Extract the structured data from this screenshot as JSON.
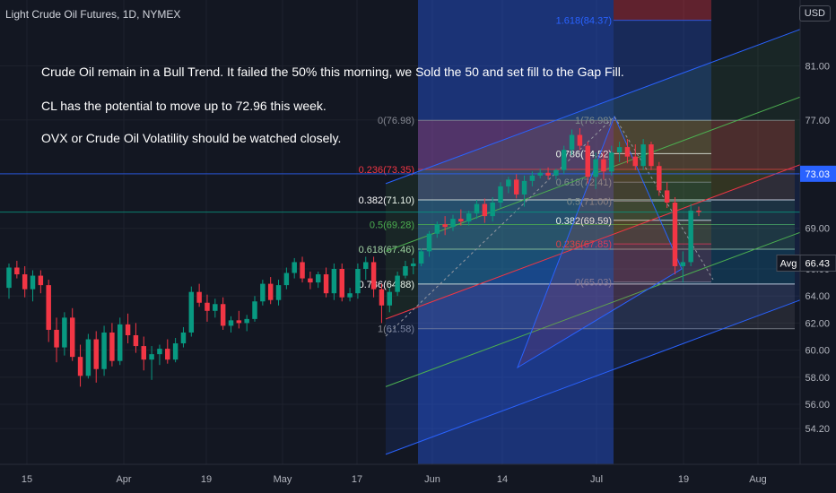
{
  "header": {
    "title": "Light Crude Oil Futures, 1D, NYMEX",
    "currency": "USD"
  },
  "notes": [
    "Crude Oil remain in a Bull Trend. It failed the 50% this morning, we Sold the 50 and set fill to the Gap Fill.",
    "CL has the potential to move up to 72.96 this week.",
    "OVX or Crude Oil Volatility should be watched closely."
  ],
  "chart_data": {
    "type": "candlestick",
    "ylim": [
      54.2,
      84.5
    ],
    "y_ticks": [
      "54.20",
      "56.00",
      "58.00",
      "60.00",
      "62.00",
      "64.00",
      "66.00",
      "69.00",
      "73.00",
      "77.00",
      "81.00"
    ],
    "x_ticks": [
      "15",
      "Apr",
      "19",
      "May",
      "17",
      "Jun",
      "14",
      "Jul",
      "19",
      "Aug"
    ],
    "price_labels": [
      {
        "text": "73.03",
        "value": 73.03,
        "prefix": ""
      },
      {
        "text": "66.43",
        "value": 66.43,
        "prefix": "Avg"
      }
    ],
    "horizontal_lines": [
      73.03,
      70.2
    ],
    "candles": [
      {
        "o": 64.6,
        "h": 66.4,
        "l": 63.8,
        "c": 66.1
      },
      {
        "o": 66.1,
        "h": 66.6,
        "l": 65.3,
        "c": 65.6
      },
      {
        "o": 65.6,
        "h": 66.2,
        "l": 63.9,
        "c": 64.5
      },
      {
        "o": 64.5,
        "h": 65.9,
        "l": 63.6,
        "c": 65.5
      },
      {
        "o": 65.5,
        "h": 65.9,
        "l": 64.2,
        "c": 64.8
      },
      {
        "o": 64.8,
        "h": 65.2,
        "l": 60.6,
        "c": 61.5
      },
      {
        "o": 61.5,
        "h": 62.4,
        "l": 59.1,
        "c": 60.2
      },
      {
        "o": 60.2,
        "h": 62.8,
        "l": 59.6,
        "c": 62.4
      },
      {
        "o": 62.4,
        "h": 63.1,
        "l": 59.2,
        "c": 59.5
      },
      {
        "o": 59.5,
        "h": 60.4,
        "l": 57.3,
        "c": 58.1
      },
      {
        "o": 58.1,
        "h": 61.2,
        "l": 57.9,
        "c": 60.8
      },
      {
        "o": 60.8,
        "h": 61.4,
        "l": 57.6,
        "c": 58.6
      },
      {
        "o": 58.6,
        "h": 61.8,
        "l": 58.1,
        "c": 61.3
      },
      {
        "o": 61.3,
        "h": 62.0,
        "l": 58.8,
        "c": 59.2
      },
      {
        "o": 59.2,
        "h": 62.4,
        "l": 58.9,
        "c": 61.9
      },
      {
        "o": 61.9,
        "h": 62.7,
        "l": 60.5,
        "c": 61.1
      },
      {
        "o": 61.1,
        "h": 62.0,
        "l": 59.8,
        "c": 60.3
      },
      {
        "o": 60.3,
        "h": 61.0,
        "l": 58.5,
        "c": 59.3
      },
      {
        "o": 59.3,
        "h": 60.3,
        "l": 57.8,
        "c": 59.7
      },
      {
        "o": 59.7,
        "h": 60.4,
        "l": 58.9,
        "c": 60.1
      },
      {
        "o": 60.1,
        "h": 60.8,
        "l": 59.0,
        "c": 59.3
      },
      {
        "o": 59.3,
        "h": 60.9,
        "l": 59.1,
        "c": 60.5
      },
      {
        "o": 60.5,
        "h": 61.7,
        "l": 60.2,
        "c": 61.3
      },
      {
        "o": 61.3,
        "h": 64.7,
        "l": 61.0,
        "c": 64.3
      },
      {
        "o": 64.3,
        "h": 64.9,
        "l": 63.2,
        "c": 63.5
      },
      {
        "o": 63.5,
        "h": 64.1,
        "l": 62.1,
        "c": 62.9
      },
      {
        "o": 62.9,
        "h": 63.8,
        "l": 62.4,
        "c": 63.4
      },
      {
        "o": 63.4,
        "h": 63.9,
        "l": 61.5,
        "c": 61.8
      },
      {
        "o": 61.8,
        "h": 62.5,
        "l": 61.3,
        "c": 62.2
      },
      {
        "o": 62.2,
        "h": 62.9,
        "l": 61.6,
        "c": 62.0
      },
      {
        "o": 62.0,
        "h": 62.6,
        "l": 61.4,
        "c": 62.3
      },
      {
        "o": 62.3,
        "h": 64.0,
        "l": 62.1,
        "c": 63.6
      },
      {
        "o": 63.6,
        "h": 65.2,
        "l": 63.3,
        "c": 64.9
      },
      {
        "o": 64.9,
        "h": 65.4,
        "l": 63.4,
        "c": 63.7
      },
      {
        "o": 63.7,
        "h": 65.2,
        "l": 63.3,
        "c": 64.8
      },
      {
        "o": 64.8,
        "h": 66.1,
        "l": 64.5,
        "c": 65.7
      },
      {
        "o": 65.7,
        "h": 66.8,
        "l": 65.3,
        "c": 66.5
      },
      {
        "o": 66.5,
        "h": 66.9,
        "l": 65.0,
        "c": 65.3
      },
      {
        "o": 65.3,
        "h": 65.8,
        "l": 64.5,
        "c": 65.0
      },
      {
        "o": 65.0,
        "h": 65.8,
        "l": 64.6,
        "c": 65.6
      },
      {
        "o": 65.6,
        "h": 66.1,
        "l": 63.9,
        "c": 64.2
      },
      {
        "o": 64.2,
        "h": 66.4,
        "l": 63.7,
        "c": 66.0
      },
      {
        "o": 66.0,
        "h": 66.4,
        "l": 63.6,
        "c": 63.9
      },
      {
        "o": 63.9,
        "h": 64.6,
        "l": 63.6,
        "c": 64.2
      },
      {
        "o": 64.2,
        "h": 66.4,
        "l": 63.8,
        "c": 66.0
      },
      {
        "o": 66.0,
        "h": 66.9,
        "l": 65.2,
        "c": 66.5
      },
      {
        "o": 66.5,
        "h": 66.9,
        "l": 63.9,
        "c": 64.5
      },
      {
        "o": 64.5,
        "h": 64.9,
        "l": 62.0,
        "c": 63.3
      },
      {
        "o": 63.3,
        "h": 64.6,
        "l": 62.8,
        "c": 64.3
      },
      {
        "o": 64.3,
        "h": 65.8,
        "l": 64.0,
        "c": 65.5
      },
      {
        "o": 65.5,
        "h": 66.6,
        "l": 65.3,
        "c": 66.2
      },
      {
        "o": 66.2,
        "h": 66.8,
        "l": 65.6,
        "c": 66.4
      },
      {
        "o": 66.4,
        "h": 67.5,
        "l": 66.2,
        "c": 67.3
      },
      {
        "o": 67.3,
        "h": 68.8,
        "l": 66.9,
        "c": 68.6
      },
      {
        "o": 68.6,
        "h": 69.5,
        "l": 68.3,
        "c": 69.3
      },
      {
        "o": 69.3,
        "h": 69.9,
        "l": 68.5,
        "c": 69.1
      },
      {
        "o": 69.1,
        "h": 70.0,
        "l": 68.8,
        "c": 69.7
      },
      {
        "o": 69.7,
        "h": 70.4,
        "l": 69.2,
        "c": 69.5
      },
      {
        "o": 69.5,
        "h": 70.3,
        "l": 69.2,
        "c": 70.1
      },
      {
        "o": 70.1,
        "h": 71.1,
        "l": 69.7,
        "c": 70.8
      },
      {
        "o": 70.8,
        "h": 71.2,
        "l": 69.4,
        "c": 69.9
      },
      {
        "o": 69.9,
        "h": 71.3,
        "l": 69.5,
        "c": 70.9
      },
      {
        "o": 70.9,
        "h": 72.4,
        "l": 70.5,
        "c": 72.1
      },
      {
        "o": 72.1,
        "h": 72.8,
        "l": 71.6,
        "c": 72.6
      },
      {
        "o": 72.6,
        "h": 73.0,
        "l": 71.2,
        "c": 71.5
      },
      {
        "o": 71.5,
        "h": 72.9,
        "l": 70.6,
        "c": 72.5
      },
      {
        "o": 72.5,
        "h": 73.2,
        "l": 72.1,
        "c": 72.9
      },
      {
        "o": 72.9,
        "h": 73.4,
        "l": 72.7,
        "c": 73.1
      },
      {
        "o": 73.1,
        "h": 73.5,
        "l": 72.6,
        "c": 72.9
      },
      {
        "o": 72.9,
        "h": 73.4,
        "l": 72.6,
        "c": 73.3
      },
      {
        "o": 73.3,
        "h": 75.1,
        "l": 73.0,
        "c": 74.8
      },
      {
        "o": 74.8,
        "h": 76.3,
        "l": 74.4,
        "c": 75.9
      },
      {
        "o": 75.9,
        "h": 76.4,
        "l": 74.8,
        "c": 75.1
      },
      {
        "o": 75.1,
        "h": 75.4,
        "l": 72.3,
        "c": 72.8
      },
      {
        "o": 72.8,
        "h": 74.6,
        "l": 71.9,
        "c": 74.1
      },
      {
        "o": 74.1,
        "h": 74.6,
        "l": 72.6,
        "c": 73.2
      },
      {
        "o": 73.2,
        "h": 75.1,
        "l": 72.9,
        "c": 74.6
      },
      {
        "o": 74.6,
        "h": 75.4,
        "l": 73.9,
        "c": 75.0
      },
      {
        "o": 75.0,
        "h": 75.6,
        "l": 73.8,
        "c": 74.3
      },
      {
        "o": 74.3,
        "h": 75.2,
        "l": 73.3,
        "c": 73.6
      },
      {
        "o": 73.6,
        "h": 75.6,
        "l": 73.3,
        "c": 75.2
      },
      {
        "o": 75.2,
        "h": 75.4,
        "l": 73.3,
        "c": 73.6
      },
      {
        "o": 73.6,
        "h": 73.9,
        "l": 71.4,
        "c": 71.8
      },
      {
        "o": 71.8,
        "h": 72.4,
        "l": 70.5,
        "c": 70.9
      },
      {
        "o": 70.9,
        "h": 71.3,
        "l": 65.6,
        "c": 66.2
      },
      {
        "o": 66.2,
        "h": 67.3,
        "l": 65.0,
        "c": 66.5
      },
      {
        "o": 66.5,
        "h": 70.8,
        "l": 66.2,
        "c": 70.3
      },
      {
        "o": 70.3,
        "h": 70.6,
        "l": 69.9,
        "c": 70.2
      }
    ],
    "fib_left": {
      "labels": [
        "0(76.98)",
        "0.236(73.35)",
        "0.382(71.10)",
        "0.5(69.28)",
        "0.618(67.46)",
        "0.786(64.88)",
        "1(61.58)"
      ],
      "values": [
        76.98,
        73.35,
        71.1,
        69.28,
        67.46,
        64.88,
        61.58
      ],
      "colors": [
        "#868993",
        "#f23645",
        "#ffffff",
        "#4caf50",
        "#a5d6a7",
        "#ffffff",
        "#868993"
      ],
      "fills": [
        "rgba(242,54,69,0.25)",
        "rgba(255,152,0,0.12)",
        "rgba(76,175,80,0.14)",
        "rgba(76,175,80,0.18)",
        "rgba(0,150,136,0.18)",
        "rgba(120,123,134,0.18)"
      ]
    },
    "fib_right": {
      "labels": [
        "1(76.98)",
        "0.786(74.52)",
        "0.618(72.41)",
        "0.5(71.00)",
        "0.382(69.59)",
        "0.236(67.85)",
        "0(65.03)",
        "1.618(84.37)"
      ],
      "values": [
        76.98,
        74.52,
        72.41,
        71.0,
        69.59,
        67.85,
        65.03,
        84.37
      ],
      "colors": [
        "#868993",
        "#ffffff",
        "#868993",
        "#868993",
        "#ffffff",
        "#f23645",
        "#868993",
        "#2962ff"
      ]
    },
    "channel": {
      "mid": [
        [
          62.3,
          73.7
        ],
        [
          62.9,
          84.3
        ]
      ],
      "upper_offset": 10.0,
      "lower_offset": -10.0
    }
  }
}
